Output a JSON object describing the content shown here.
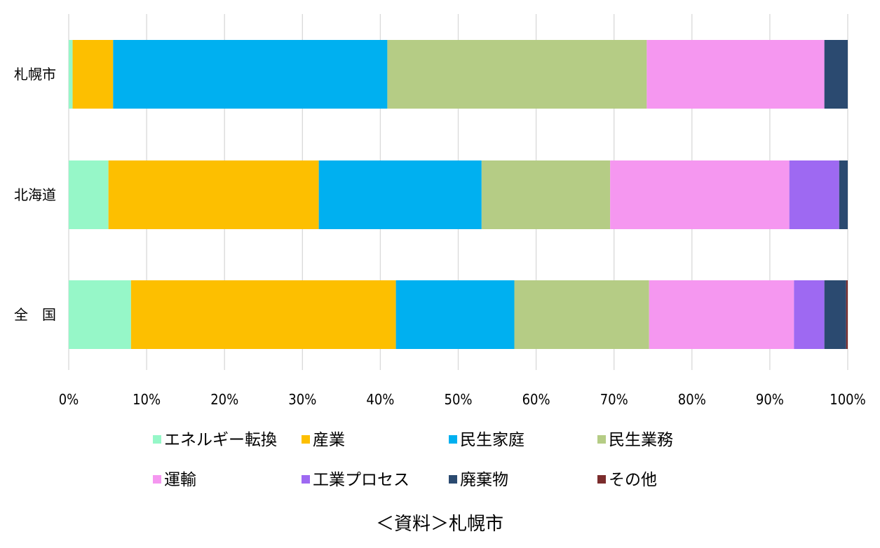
{
  "chart_data": {
    "type": "bar",
    "orientation": "horizontal",
    "stacked": "percent",
    "categories": [
      "札幌市",
      "北海道",
      "全　国"
    ],
    "series": [
      {
        "name": "エネルギー転換",
        "color": "#96F7C8",
        "values": [
          0.5,
          5.1,
          8.0
        ]
      },
      {
        "name": "産業",
        "color": "#FDBF00",
        "values": [
          5.2,
          27.0,
          34.0
        ]
      },
      {
        "name": "民生家庭",
        "color": "#00B0F0",
        "values": [
          35.2,
          20.9,
          15.2
        ]
      },
      {
        "name": "民生業務",
        "color": "#B5CC85",
        "values": [
          33.3,
          16.5,
          17.3
        ]
      },
      {
        "name": "運輸",
        "color": "#F597F0",
        "values": [
          22.8,
          23.0,
          18.6
        ]
      },
      {
        "name": "工業プロセス",
        "color": "#9E69F2",
        "values": [
          0.0,
          6.4,
          3.9
        ]
      },
      {
        "name": "廃棄物",
        "color": "#2B4A70",
        "values": [
          3.0,
          1.1,
          2.8
        ]
      },
      {
        "name": "その他",
        "color": "#7B2C2C",
        "values": [
          0.0,
          0.0,
          0.2
        ]
      }
    ],
    "xlim": [
      0,
      100
    ],
    "x_ticks": [
      "0%",
      "10%",
      "20%",
      "30%",
      "40%",
      "50%",
      "60%",
      "70%",
      "80%",
      "90%",
      "100%"
    ],
    "grid": true,
    "legend_position": "bottom"
  },
  "source_note": "＜資料＞札幌市"
}
